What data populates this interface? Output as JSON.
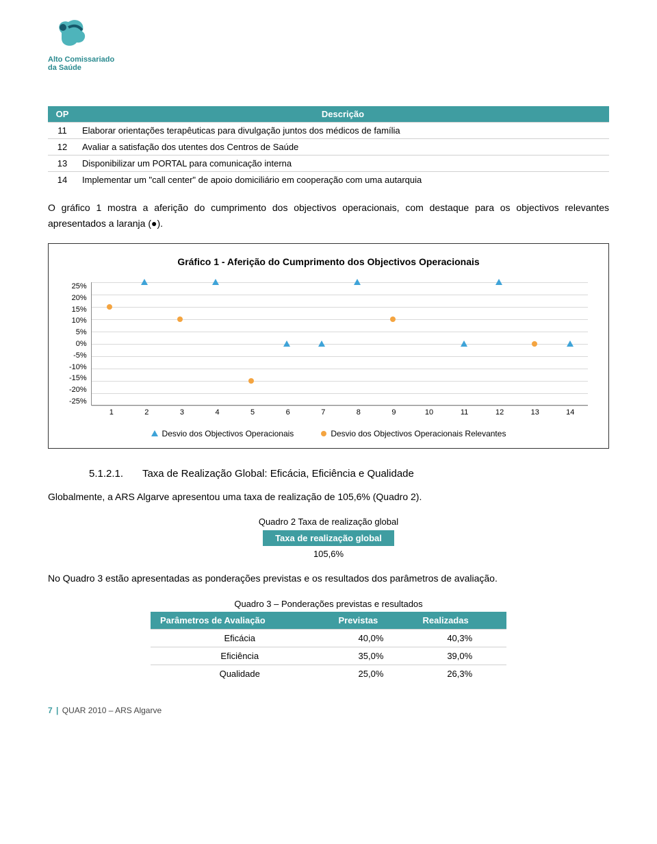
{
  "logo": {
    "line1": "Alto Comissariado",
    "line2": "da Saúde",
    "color": "#2a8a8f"
  },
  "op_table": {
    "headers": {
      "op": "OP",
      "desc": "Descrição"
    },
    "rows": [
      {
        "n": "11",
        "d": "Elaborar orientações terapêuticas para divulgação juntos dos médicos de família"
      },
      {
        "n": "12",
        "d": "Avaliar a satisfação dos utentes dos Centros de Saúde"
      },
      {
        "n": "13",
        "d": "Disponibilizar um PORTAL para comunicação interna"
      },
      {
        "n": "14",
        "d": "Implementar um \"call center\" de apoio domiciliário em cooperação com uma autarquia"
      }
    ]
  },
  "para1": "O gráfico 1 mostra a aferição do cumprimento dos objectivos operacionais, com destaque para os objectivos relevantes apresentados a laranja (●).",
  "chart": {
    "title": "Gráfico 1 - Aferição do Cumprimento dos Objectivos Operacionais",
    "ylim": [
      -25,
      25
    ],
    "yticks": [
      "25%",
      "20%",
      "15%",
      "10%",
      "5%",
      "0%",
      "-5%",
      "-10%",
      "-15%",
      "-20%",
      "-25%"
    ],
    "xticks": [
      "1",
      "2",
      "3",
      "4",
      "5",
      "6",
      "7",
      "8",
      "9",
      "10",
      "11",
      "12",
      "13",
      "14"
    ],
    "series_a": {
      "name": "Desvio dos Objectivos Operacionais",
      "color": "#3ea3d8",
      "shape": "triangle",
      "points": [
        null,
        25,
        null,
        25,
        null,
        0,
        0,
        25,
        null,
        null,
        0,
        25,
        null,
        0
      ]
    },
    "series_b": {
      "name": "Desvio dos Objectivos Operacionais Relevantes",
      "color": "#f4a440",
      "shape": "circle",
      "points": [
        15,
        null,
        10,
        null,
        -15,
        null,
        null,
        null,
        10,
        null,
        null,
        null,
        0,
        null
      ]
    }
  },
  "section": {
    "num": "5.1.2.1.",
    "title": "Taxa de Realização Global: Eficácia, Eficiência e Qualidade"
  },
  "para2": "Globalmente, a ARS Algarve apresentou uma taxa de realização de 105,6% (Quadro 2).",
  "quadro2": {
    "label": "Quadro 2 Taxa de realização global",
    "header": "Taxa de realização global",
    "value": "105,6%"
  },
  "para3": "No Quadro 3 estão apresentadas as ponderações previstas e os resultados dos parâmetros de avaliação.",
  "quadro3": {
    "label": "Quadro 3 – Ponderações previstas e resultados",
    "headers": {
      "p": "Parâmetros de Avaliação",
      "prev": "Previstas",
      "real": "Realizadas"
    },
    "rows": [
      {
        "p": "Eficácia",
        "prev": "40,0%",
        "real": "40,3%"
      },
      {
        "p": "Eficiência",
        "prev": "35,0%",
        "real": "39,0%"
      },
      {
        "p": "Qualidade",
        "prev": "25,0%",
        "real": "26,3%"
      }
    ]
  },
  "footer": {
    "page": "7",
    "sep": "|",
    "doc": "QUAR 2010 – ARS Algarve"
  }
}
